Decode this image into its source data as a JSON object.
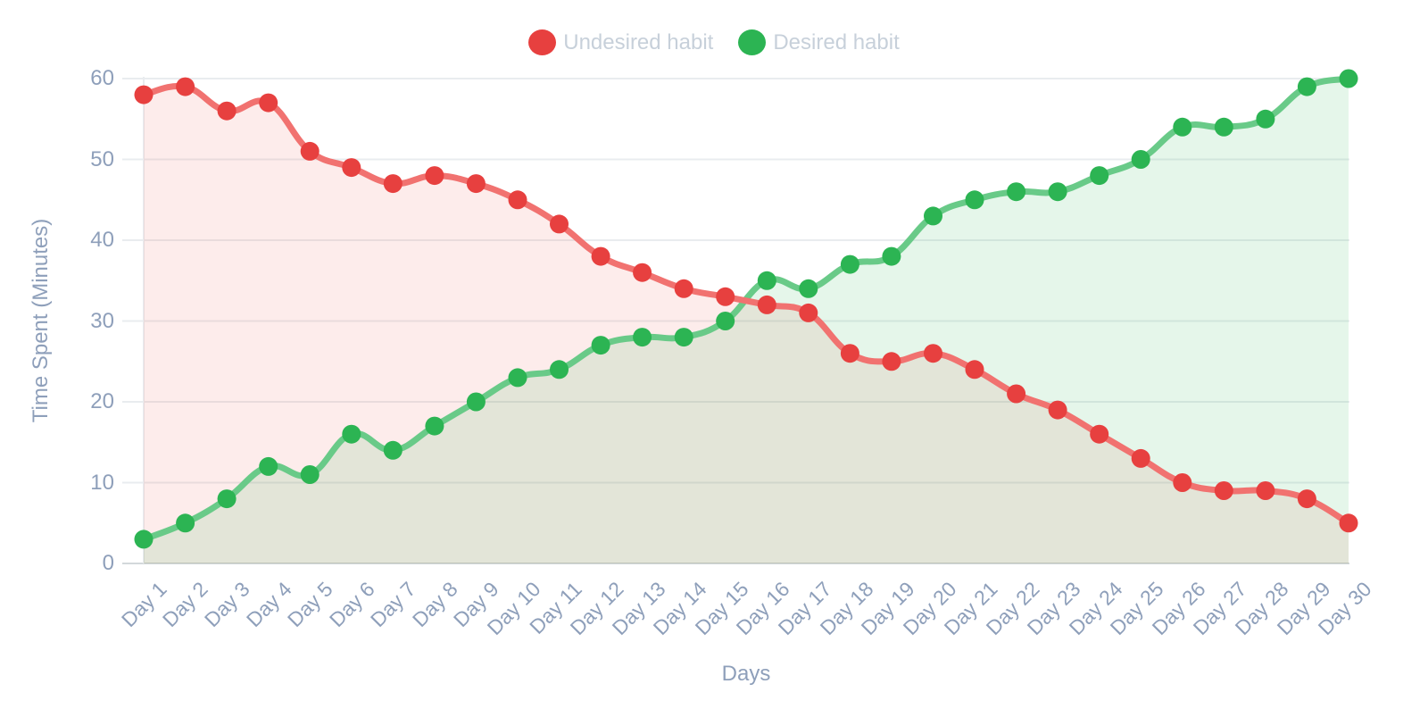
{
  "chart_data": {
    "type": "line",
    "title": "",
    "categories": [
      "Day 1",
      "Day 2",
      "Day 3",
      "Day 4",
      "Day 5",
      "Day 6",
      "Day 7",
      "Day 8",
      "Day 9",
      "Day 10",
      "Day 11",
      "Day 12",
      "Day 13",
      "Day 14",
      "Day 15",
      "Day 16",
      "Day 17",
      "Day 18",
      "Day 19",
      "Day 20",
      "Day 21",
      "Day 22",
      "Day 23",
      "Day 24",
      "Day 25",
      "Day 26",
      "Day 27",
      "Day 28",
      "Day 29",
      "Day 30"
    ],
    "series": [
      {
        "name": "Undesired habit",
        "point_color": "#e7403f",
        "line_color": "#f17270",
        "fill_color": "rgba(231,64,63,0.10)",
        "values": [
          58,
          59,
          56,
          57,
          51,
          49,
          47,
          48,
          47,
          45,
          42,
          38,
          36,
          34,
          33,
          32,
          31,
          26,
          25,
          26,
          24,
          21,
          19,
          16,
          13,
          10,
          9,
          9,
          8,
          5
        ]
      },
      {
        "name": "Desired habit",
        "point_color": "#2cb453",
        "line_color": "#69ca88",
        "fill_color": "rgba(44,180,83,0.12)",
        "values": [
          3,
          5,
          8,
          12,
          11,
          16,
          14,
          17,
          20,
          23,
          24,
          27,
          28,
          28,
          30,
          35,
          34,
          37,
          38,
          43,
          45,
          46,
          46,
          48,
          50,
          54,
          54,
          55,
          59,
          60
        ]
      }
    ],
    "xlabel": "Days",
    "ylabel": "Time Spent (Minutes)",
    "ylim": [
      0,
      60
    ],
    "yticks": [
      0,
      10,
      20,
      30,
      40,
      50,
      60
    ],
    "grid": true,
    "legend_position": "top",
    "smoothed": true,
    "area_fill": true
  },
  "colors": {
    "axis_text": "#8e9fba",
    "legend_text": "#c7d0da",
    "grid_line": "#e9ecef",
    "zero_line": "#d3d8db",
    "background": "#ffffff"
  }
}
